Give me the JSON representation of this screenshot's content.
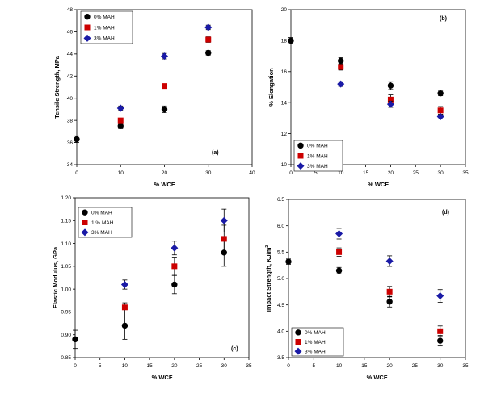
{
  "colors": {
    "series_0": "#000000",
    "series_1": "#cc0000",
    "series_2": "#1a1aa6",
    "error_bar": "#000000"
  },
  "chart_data": [
    {
      "panel": "a",
      "type": "scatter",
      "xlabel": "% WCF",
      "ylabel": "Tensile Strength, MPa",
      "xlim": [
        0,
        40
      ],
      "ylim": [
        34,
        48
      ],
      "xticks": [
        0,
        10,
        20,
        30,
        40
      ],
      "yticks": [
        34,
        36,
        38,
        40,
        42,
        44,
        46,
        48
      ],
      "legend_position": "top-left",
      "panel_label": "(a)",
      "series": [
        {
          "name": "0% MAH",
          "marker": "circle",
          "x": [
            0,
            10,
            20,
            30
          ],
          "y": [
            36.3,
            37.5,
            39.0,
            44.1
          ],
          "err": [
            0.3,
            0.25,
            0.3,
            0.2
          ]
        },
        {
          "name": "1% MAH",
          "marker": "square",
          "x": [
            10,
            20,
            30
          ],
          "y": [
            38.0,
            41.1,
            45.3
          ],
          "err": [
            0.2,
            0.2,
            0.25
          ]
        },
        {
          "name": "3% MAH",
          "marker": "diamond",
          "x": [
            10,
            20,
            30
          ],
          "y": [
            39.1,
            43.8,
            46.4
          ],
          "err": [
            0.2,
            0.25,
            0.2
          ]
        }
      ]
    },
    {
      "panel": "b",
      "type": "scatter",
      "xlabel": "% WCF",
      "ylabel": "% Elongation",
      "xlim": [
        0,
        35
      ],
      "ylim": [
        10,
        20
      ],
      "xticks": [
        0,
        5,
        10,
        15,
        20,
        25,
        30,
        35
      ],
      "yticks": [
        10,
        12,
        14,
        16,
        18,
        20
      ],
      "legend_position": "bottom-left",
      "panel_label": "(b)",
      "series": [
        {
          "name": "0% MAH",
          "marker": "circle",
          "x": [
            0,
            10,
            20,
            30
          ],
          "y": [
            18.0,
            16.7,
            15.1,
            14.6
          ],
          "err": [
            0.2,
            0.2,
            0.25,
            0.15
          ]
        },
        {
          "name": "1% MAH",
          "marker": "square",
          "x": [
            10,
            20,
            30
          ],
          "y": [
            16.3,
            14.2,
            13.5
          ],
          "err": [
            0.2,
            0.3,
            0.25
          ]
        },
        {
          "name": "3% MAH",
          "marker": "diamond",
          "x": [
            10,
            20,
            30
          ],
          "y": [
            15.2,
            13.9,
            13.1
          ],
          "err": [
            0.15,
            0.2,
            0.15
          ]
        }
      ]
    },
    {
      "panel": "c",
      "type": "scatter",
      "xlabel": "% WCF",
      "ylabel": "Elastic Modulus, GPa",
      "xlim": [
        0,
        35
      ],
      "ylim": [
        0.85,
        1.2
      ],
      "xticks": [
        0,
        5,
        10,
        15,
        20,
        25,
        30,
        35
      ],
      "yticks": [
        0.85,
        0.9,
        0.95,
        1.0,
        1.05,
        1.1,
        1.15,
        1.2
      ],
      "ytick_labels": [
        "0.85",
        "0.90",
        "0.95",
        "1.00",
        "1.05",
        "1.10",
        "1.15",
        "1.20"
      ],
      "legend_position": "top-left",
      "panel_label": "(c)",
      "series": [
        {
          "name": "0% MAH",
          "marker": "circle",
          "x": [
            0,
            10,
            20,
            30
          ],
          "y": [
            0.89,
            0.92,
            1.01,
            1.08
          ],
          "err": [
            0.02,
            0.03,
            0.02,
            0.03
          ]
        },
        {
          "name": "1 % MAH",
          "marker": "square",
          "x": [
            10,
            20,
            30
          ],
          "y": [
            0.96,
            1.05,
            1.11
          ],
          "err": [
            0.01,
            0.02,
            0.03
          ]
        },
        {
          "name": "3% MAH",
          "marker": "diamond",
          "x": [
            10,
            20,
            30
          ],
          "y": [
            1.01,
            1.09,
            1.15
          ],
          "err": [
            0.01,
            0.015,
            0.025
          ]
        }
      ]
    },
    {
      "panel": "d",
      "type": "scatter",
      "xlabel": "% WCF",
      "ylabel": "Impact Strength, KJ/m",
      "ylabel_superscript": "2",
      "xlim": [
        0,
        35
      ],
      "ylim": [
        3.5,
        6.5
      ],
      "xticks": [
        0,
        5,
        10,
        15,
        20,
        25,
        30,
        35
      ],
      "yticks": [
        3.5,
        4.0,
        4.5,
        5.0,
        5.5,
        6.0,
        6.5
      ],
      "ytick_labels": [
        "3.5",
        "4.0",
        "4.5",
        "5.0",
        "5.5",
        "6.0",
        "6.5"
      ],
      "legend_position": "bottom-left",
      "panel_label": "(d)",
      "series": [
        {
          "name": "0% MAH",
          "marker": "circle",
          "x": [
            0,
            10,
            20,
            30
          ],
          "y": [
            5.32,
            5.15,
            4.56,
            3.82
          ],
          "err": [
            0.05,
            0.06,
            0.1,
            0.1
          ]
        },
        {
          "name": "1% MAH",
          "marker": "square",
          "x": [
            10,
            20,
            30
          ],
          "y": [
            5.5,
            4.75,
            4.0
          ],
          "err": [
            0.08,
            0.1,
            0.1
          ]
        },
        {
          "name": "3% MAH",
          "marker": "diamond",
          "x": [
            10,
            20,
            30
          ],
          "y": [
            5.85,
            5.33,
            4.67
          ],
          "err": [
            0.1,
            0.1,
            0.12
          ]
        }
      ]
    }
  ]
}
